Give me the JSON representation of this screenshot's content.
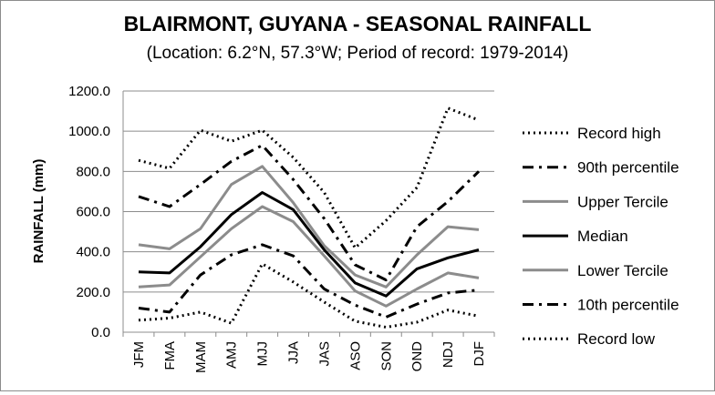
{
  "chart_data": {
    "type": "line",
    "title": "BLAIRMONT, GUYANA - SEASONAL RAINFALL",
    "subtitle": "(Location: 6.2°N, 57.3°W; Period of record: 1979-2014)",
    "xlabel": "",
    "ylabel": "RAINFALL (mm)",
    "ylim": [
      0,
      1200
    ],
    "yticks": [
      "0.0",
      "200.0",
      "400.0",
      "600.0",
      "800.0",
      "1000.0",
      "1200.0"
    ],
    "grid": true,
    "legend_position": "right",
    "categories": [
      "JFM",
      "FMA",
      "MAM",
      "AMJ",
      "MJJ",
      "JJA",
      "JAS",
      "ASO",
      "SON",
      "OND",
      "NDJ",
      "DJF"
    ],
    "series": [
      {
        "name": "Record high",
        "style": "dotted",
        "color": "#000000",
        "values": [
          855,
          815,
          1005,
          950,
          1005,
          870,
          695,
          420,
          555,
          720,
          1115,
          1055
        ]
      },
      {
        "name": "90th percentile",
        "style": "dashdot",
        "color": "#000000",
        "values": [
          675,
          625,
          735,
          850,
          930,
          760,
          565,
          335,
          260,
          525,
          650,
          800
        ]
      },
      {
        "name": "Upper Tercile",
        "style": "solid",
        "color": "#8c8c8c",
        "values": [
          435,
          415,
          515,
          735,
          825,
          645,
          430,
          285,
          225,
          385,
          525,
          510
        ]
      },
      {
        "name": "Median",
        "style": "solid",
        "color": "#000000",
        "values": [
          300,
          295,
          425,
          585,
          695,
          610,
          410,
          245,
          180,
          315,
          370,
          410
        ]
      },
      {
        "name": "Lower Tercile",
        "style": "solid",
        "color": "#8c8c8c",
        "values": [
          225,
          235,
          375,
          515,
          625,
          550,
          380,
          205,
          130,
          215,
          295,
          270
        ]
      },
      {
        "name": "10th percentile",
        "style": "dashdot",
        "color": "#000000",
        "values": [
          120,
          100,
          285,
          385,
          435,
          380,
          215,
          135,
          75,
          140,
          195,
          210
        ]
      },
      {
        "name": "Record low",
        "style": "dotted",
        "color": "#000000",
        "values": [
          60,
          70,
          100,
          45,
          340,
          250,
          150,
          55,
          25,
          50,
          110,
          80
        ]
      }
    ]
  }
}
